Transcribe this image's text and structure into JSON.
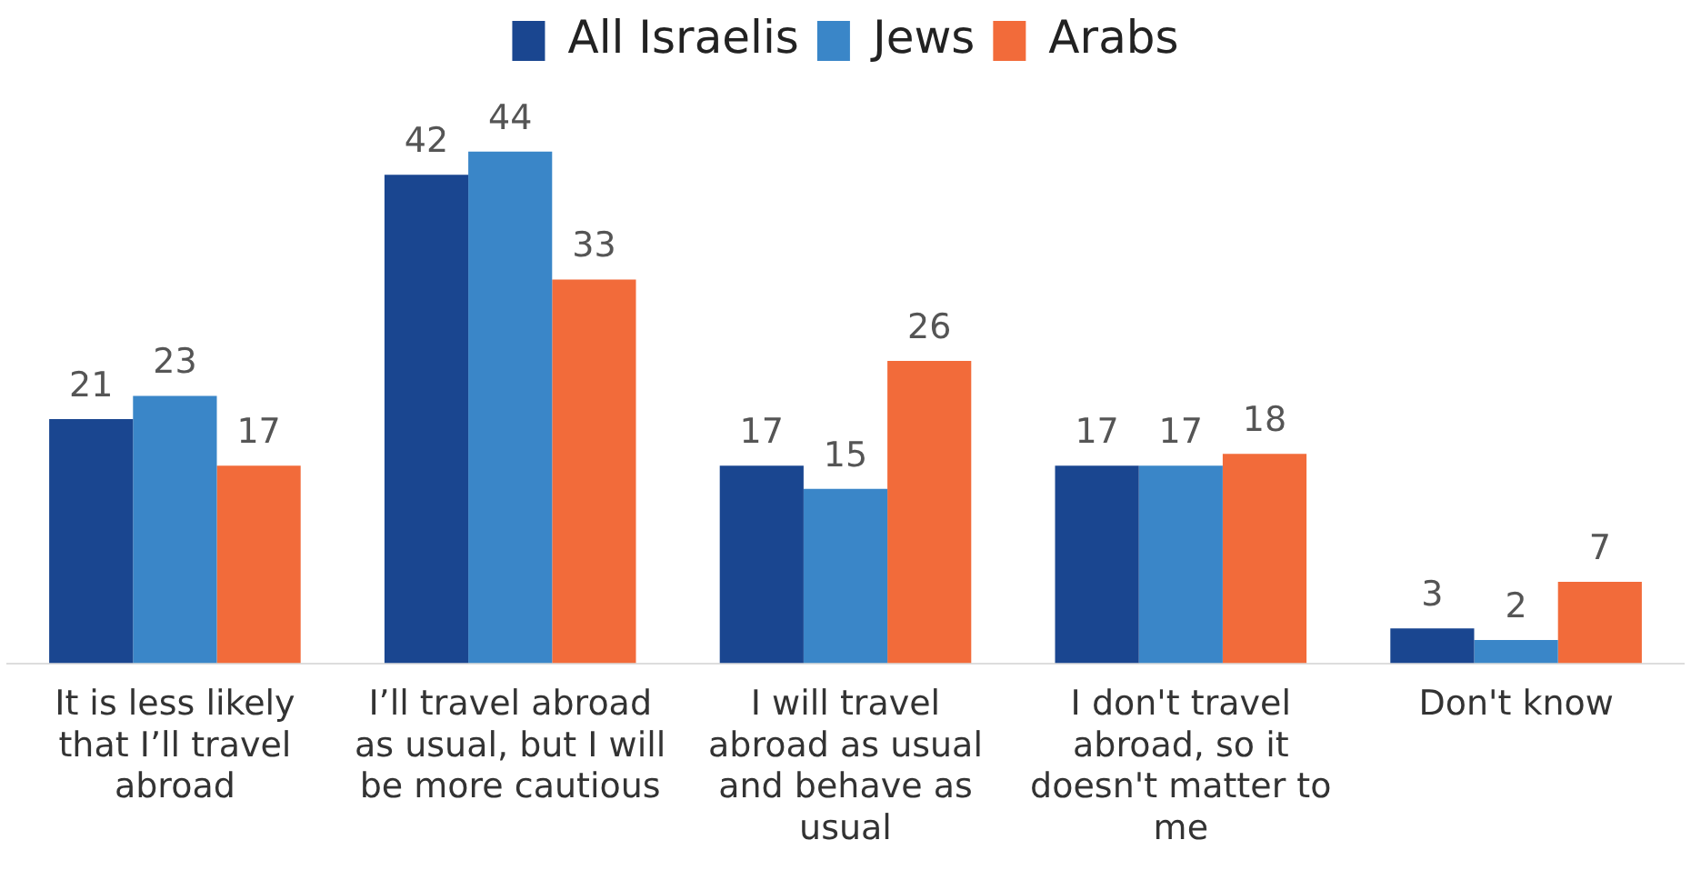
{
  "chart_data": {
    "type": "bar",
    "categories": [
      "It is less likely that I’ll travel abroad",
      "I’ll travel abroad as usual, but I will be more cautious",
      "I will travel abroad as usual and behave as usual",
      "I don't travel abroad, so it doesn't matter to me",
      "Don't know"
    ],
    "series": [
      {
        "name": "All Israelis",
        "color": "#1a4690",
        "values": [
          21,
          42,
          17,
          17,
          3
        ]
      },
      {
        "name": "Jews",
        "color": "#3a86c8",
        "values": [
          23,
          44,
          15,
          17,
          2
        ]
      },
      {
        "name": "Arabs",
        "color": "#f26b3a",
        "values": [
          17,
          33,
          26,
          18,
          7
        ]
      }
    ],
    "data_labels": true,
    "legend": "top",
    "grid": false,
    "tick_labels": "x"
  }
}
